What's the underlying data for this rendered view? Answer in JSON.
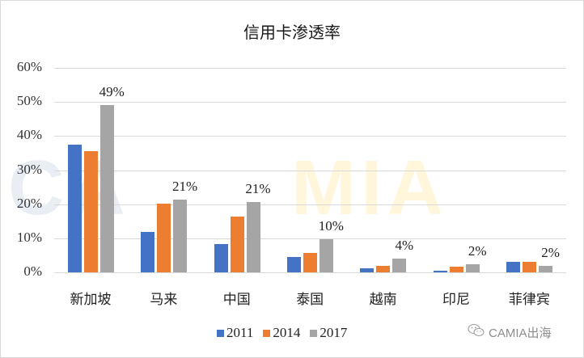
{
  "chart_data": {
    "type": "bar",
    "title": "信用卡渗透率",
    "xlabel": "",
    "ylabel": "",
    "ylim": [
      0,
      0.6
    ],
    "yticks": [
      "0%",
      "10%",
      "20%",
      "30%",
      "40%",
      "50%",
      "60%"
    ],
    "grid": true,
    "legend_position": "bottom",
    "categories": [
      "新加坡",
      "马来",
      "中国",
      "泰国",
      "越南",
      "印尼",
      "菲律宾"
    ],
    "series": [
      {
        "name": "2011",
        "color": "#4472c4",
        "values": [
          0.374,
          0.119,
          0.083,
          0.045,
          0.012,
          0.005,
          0.031
        ]
      },
      {
        "name": "2014",
        "color": "#ed7d31",
        "values": [
          0.355,
          0.202,
          0.164,
          0.057,
          0.019,
          0.017,
          0.031
        ]
      },
      {
        "name": "2017",
        "color": "#a5a5a5",
        "values": [
          0.49,
          0.214,
          0.207,
          0.098,
          0.04,
          0.024,
          0.02
        ]
      }
    ],
    "data_labels": {
      "series": "2017",
      "labels": [
        "49%",
        "21%",
        "21%",
        "10%",
        "4%",
        "2%",
        "2%"
      ]
    }
  },
  "legend": [
    {
      "label": "2011",
      "color": "#4472c4"
    },
    {
      "label": "2014",
      "color": "#ed7d31"
    },
    {
      "label": "2017",
      "color": "#a5a5a5"
    }
  ],
  "watermark": {
    "left": "CA",
    "right": "MIA"
  },
  "brand": {
    "icon": "wechat-icon",
    "text": "CAMIA出海"
  }
}
